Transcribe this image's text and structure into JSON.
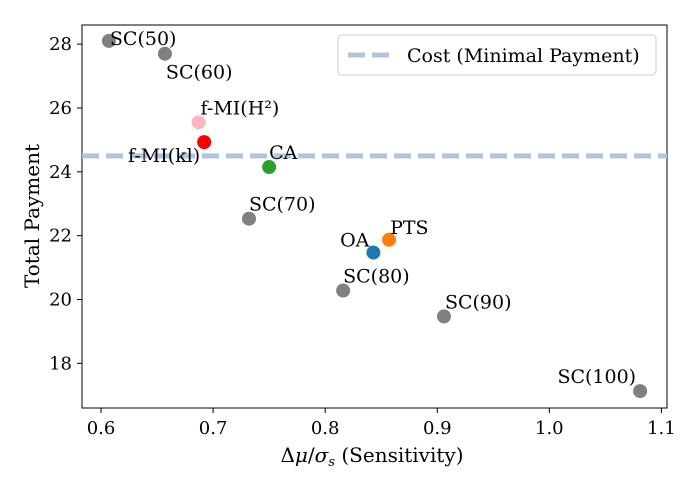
{
  "chart_data": {
    "type": "scatter",
    "xlabel": "Δμ/σ_s (Sensitivity)",
    "ylabel": "Total Payment",
    "xlim": [
      0.583,
      1.105
    ],
    "ylim": [
      16.6,
      28.6
    ],
    "xticks": [
      "0.6",
      "0.7",
      "0.8",
      "0.9",
      "1.0",
      "1.1"
    ],
    "xtick_values": [
      0.6,
      0.7,
      0.8,
      0.9,
      1.0,
      1.1
    ],
    "yticks": [
      "18",
      "20",
      "22",
      "24",
      "26",
      "28"
    ],
    "ytick_values": [
      18,
      20,
      22,
      24,
      26,
      28
    ],
    "grid": false,
    "legend": {
      "position": "top-right",
      "entries": [
        "Cost (Minimal Payment)"
      ]
    },
    "reference_line": {
      "name": "Cost (Minimal Payment)",
      "y": 24.5,
      "color": "#b0c4de",
      "style": "dashed"
    },
    "points": [
      {
        "label": "SC(50)",
        "x": 0.607,
        "y": 28.1,
        "color": "#808080"
      },
      {
        "label": "SC(60)",
        "x": 0.657,
        "y": 27.7,
        "color": "#808080"
      },
      {
        "label": "f-MI(H²)",
        "x": 0.687,
        "y": 25.55,
        "color": "#ffb6c1"
      },
      {
        "label": "f-MI(kl)",
        "x": 0.692,
        "y": 24.93,
        "color": "#ff0000"
      },
      {
        "label": "CA",
        "x": 0.75,
        "y": 24.15,
        "color": "#2ca02c"
      },
      {
        "label": "SC(70)",
        "x": 0.732,
        "y": 22.53,
        "color": "#808080"
      },
      {
        "label": "OA",
        "x": 0.843,
        "y": 21.47,
        "color": "#1f77b4"
      },
      {
        "label": "PTS",
        "x": 0.857,
        "y": 21.87,
        "color": "#ff7f0e"
      },
      {
        "label": "SC(80)",
        "x": 0.816,
        "y": 20.28,
        "color": "#808080"
      },
      {
        "label": "SC(90)",
        "x": 0.906,
        "y": 19.47,
        "color": "#808080"
      },
      {
        "label": "SC(100)",
        "x": 1.081,
        "y": 17.13,
        "color": "#808080"
      }
    ]
  }
}
